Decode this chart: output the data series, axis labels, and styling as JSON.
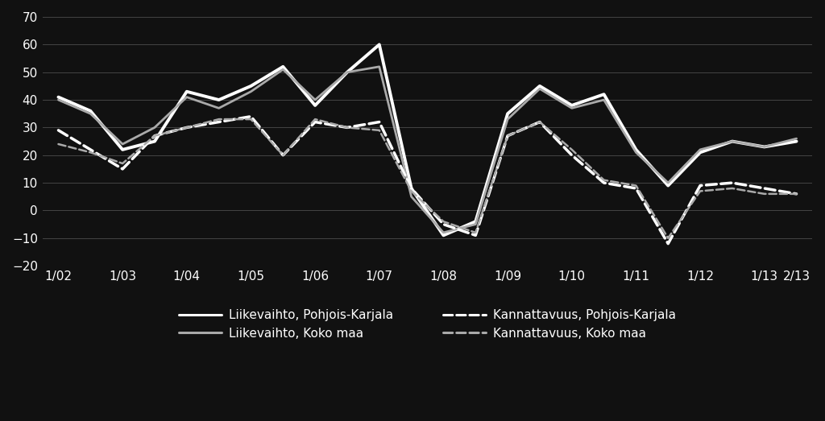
{
  "background_color": "#111111",
  "plot_bg_color": "#111111",
  "text_color": "#ffffff",
  "grid_color": "#444444",
  "xlim": [
    -0.5,
    23.5
  ],
  "ylim": [
    -20,
    70
  ],
  "yticks": [
    -20,
    -10,
    0,
    10,
    20,
    30,
    40,
    50,
    60,
    70
  ],
  "xtick_labels": [
    "1/02",
    "1/03",
    "1/04",
    "1/05",
    "1/06",
    "1/07",
    "1/08",
    "1/09",
    "1/10",
    "1/11",
    "1/12",
    "1/13",
    "2/13"
  ],
  "xtick_positions": [
    0,
    2,
    4,
    6,
    8,
    10,
    12,
    14,
    16,
    18,
    20,
    22,
    23
  ],
  "series": [
    {
      "key": "liikevaihto_pk",
      "label": "Liikevaihto, Pohjois-Karjala",
      "style": "solid",
      "linewidth": 2.8,
      "color": "#ffffff",
      "x": [
        0,
        1,
        2,
        3,
        4,
        5,
        6,
        7,
        8,
        9,
        10,
        11,
        12,
        13,
        14,
        15,
        16,
        17,
        18,
        19,
        20,
        21,
        22,
        23
      ],
      "y": [
        41,
        36,
        22,
        25,
        43,
        40,
        45,
        52,
        38,
        50,
        60,
        8,
        -9,
        -4,
        35,
        45,
        38,
        42,
        22,
        9,
        21,
        25,
        23,
        25
      ]
    },
    {
      "key": "liikevaihto_km",
      "label": "Liikevaihto, Koko maa",
      "style": "solid",
      "linewidth": 2.0,
      "color": "#aaaaaa",
      "x": [
        0,
        1,
        2,
        3,
        4,
        5,
        6,
        7,
        8,
        9,
        10,
        11,
        12,
        13,
        14,
        15,
        16,
        17,
        18,
        19,
        20,
        21,
        22,
        23
      ],
      "y": [
        40,
        35,
        24,
        30,
        41,
        37,
        43,
        51,
        40,
        50,
        52,
        5,
        -8,
        -5,
        33,
        44,
        37,
        40,
        21,
        10,
        22,
        25,
        23,
        26
      ]
    },
    {
      "key": "kannattavuus_pk",
      "label": "Kannattavuus, Pohjois-Karjala",
      "style": "dashed",
      "linewidth": 2.5,
      "color": "#ffffff",
      "x": [
        0,
        1,
        2,
        3,
        4,
        5,
        6,
        7,
        8,
        9,
        10,
        11,
        12,
        13,
        14,
        15,
        16,
        17,
        18,
        19,
        20,
        21,
        22,
        23
      ],
      "y": [
        29,
        22,
        15,
        27,
        30,
        32,
        34,
        20,
        32,
        30,
        32,
        8,
        -5,
        -9,
        27,
        32,
        20,
        10,
        8,
        -12,
        9,
        10,
        8,
        6
      ]
    },
    {
      "key": "kannattavuus_km",
      "label": "Kannattavuus, Koko maa",
      "style": "dashed",
      "linewidth": 1.8,
      "color": "#aaaaaa",
      "x": [
        0,
        1,
        2,
        3,
        4,
        5,
        6,
        7,
        8,
        9,
        10,
        11,
        12,
        13,
        14,
        15,
        16,
        17,
        18,
        19,
        20,
        21,
        22,
        23
      ],
      "y": [
        24,
        21,
        17,
        27,
        30,
        33,
        33,
        20,
        33,
        30,
        29,
        7,
        -4,
        -8,
        27,
        32,
        22,
        11,
        9,
        -10,
        7,
        8,
        6,
        6
      ]
    }
  ],
  "legend_fontsize": 11,
  "tick_fontsize": 11
}
